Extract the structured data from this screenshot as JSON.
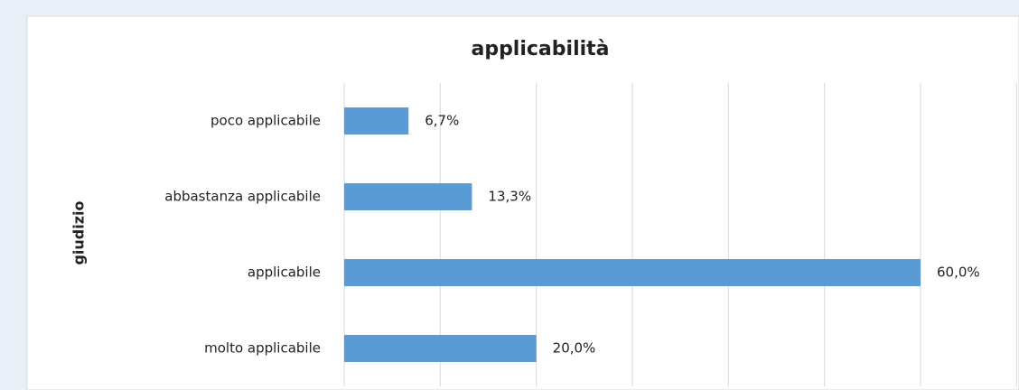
{
  "chart_data": {
    "type": "bar",
    "orientation": "horizontal",
    "title": "applicabilità",
    "y_label": "giudizio",
    "categories": [
      "poco applicabile",
      "abbastanza applicabile",
      "applicabile",
      "molto applicabile"
    ],
    "values": [
      6.7,
      13.3,
      60.0,
      20.0
    ],
    "value_labels": [
      "6,7%",
      "13,3%",
      "60,0%",
      "20,0%"
    ],
    "color": "#5b9bd5",
    "xlim": [
      0,
      70
    ],
    "xticks": [
      0,
      10,
      20,
      30,
      40,
      50,
      60,
      70
    ],
    "grid": true
  }
}
